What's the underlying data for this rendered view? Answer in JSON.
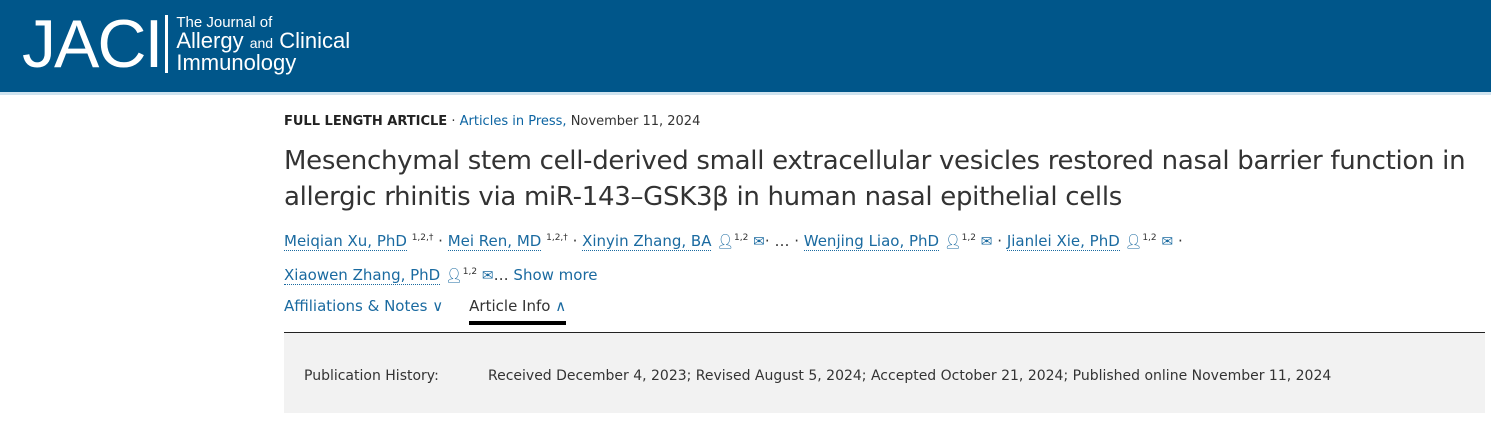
{
  "header": {
    "logo_main": "JACI",
    "logo_line1": "The Journal of",
    "logo_line2a": "Allergy",
    "logo_line2b": "and",
    "logo_line2c": "Clinical",
    "logo_line3": "Immunology",
    "bg_color": "#00568a"
  },
  "meta": {
    "type": "FULL LENGTH ARTICLE",
    "sep": "·",
    "section": "Articles in Press,",
    "date": "November 11, 2024"
  },
  "title": "Mesenchymal stem cell-derived small extracellular vesicles restored nasal barrier function in allergic rhinitis via miR-143–GSK3β in human nasal epithelial cells",
  "authors": [
    {
      "name": "Meiqian Xu, PhD",
      "sup": "1,2,†"
    },
    {
      "name": "Mei Ren, MD",
      "sup": "1,2,†"
    },
    {
      "name": "Xinyin Zhang, BA",
      "sup": "1,2"
    },
    {
      "name": "Wenjing Liao, PhD",
      "sup": "1,2"
    },
    {
      "name": "Jianlei Xie, PhD",
      "sup": "1,2"
    },
    {
      "name": "Xiaowen Zhang, PhD",
      "sup": "1,2"
    }
  ],
  "ellipsis": "…",
  "show_more": "Show more",
  "tabs": [
    {
      "label": "Affiliations & Notes"
    },
    {
      "label": "Article Info"
    }
  ],
  "history": {
    "label": "Publication History:",
    "text": "Received December 4, 2023; Revised August 5, 2024; Accepted October 21, 2024; Published online November 11, 2024"
  }
}
